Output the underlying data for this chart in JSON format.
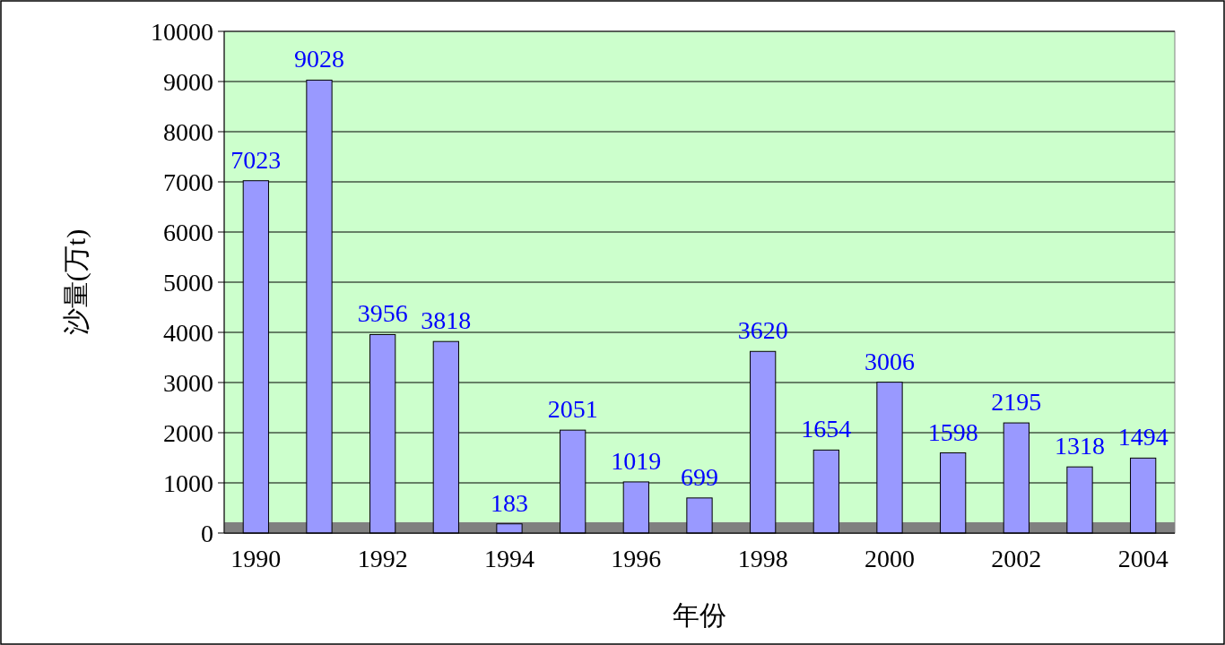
{
  "chart_data": {
    "type": "bar",
    "xlabel": "年份",
    "ylabel": "沙量(万t)",
    "categories": [
      "1990",
      null,
      "1992",
      null,
      "1994",
      null,
      "1996",
      null,
      "1998",
      null,
      "2000",
      null,
      "2002",
      null,
      "2004"
    ],
    "values": [
      7023,
      9028,
      3956,
      3818,
      183,
      2051,
      1019,
      699,
      3620,
      1654,
      3006,
      1598,
      2195,
      1318,
      1494
    ],
    "color": "#9999ff",
    "ylim": [
      0,
      10000
    ],
    "yticks": [
      0,
      1000,
      2000,
      3000,
      4000,
      5000,
      6000,
      7000,
      8000,
      9000,
      10000
    ],
    "grid": "y",
    "data_labels": true
  }
}
